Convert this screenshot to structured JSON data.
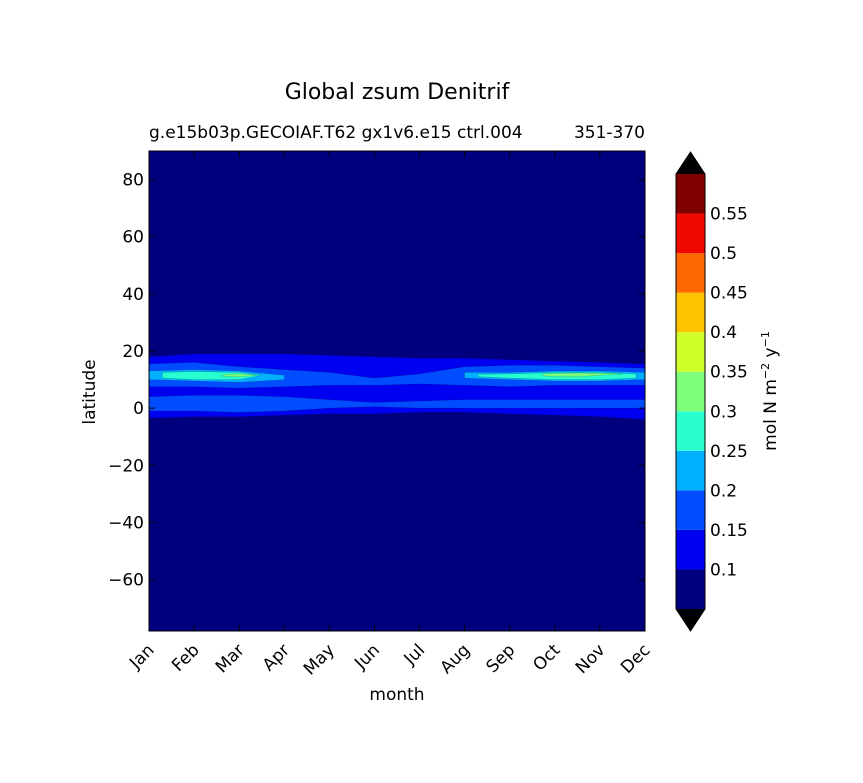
{
  "chart_data": {
    "type": "heatmap",
    "title": "Global zsum Denitrif",
    "subtitle_left": "g.e15b03p.GECOIAF.T62 gx1v6.e15 ctrl.004",
    "subtitle_right": "351-370",
    "xlabel": "month",
    "ylabel": "latitude",
    "x_categories": [
      "Jan",
      "Feb",
      "Mar",
      "Apr",
      "May",
      "Jun",
      "Jul",
      "Aug",
      "Sep",
      "Oct",
      "Nov",
      "Dec"
    ],
    "ylim": [
      -78,
      90
    ],
    "y_ticks": [
      -60,
      -40,
      -20,
      0,
      20,
      40,
      60,
      80
    ],
    "y_tick_labels": [
      "−60",
      "−40",
      "−20",
      "0",
      "20",
      "40",
      "60",
      "80"
    ],
    "colorbar": {
      "label_main": "mol N m",
      "label_exp1": "−2",
      "label_mid": " y",
      "label_exp2": "−1",
      "levels": [
        0.05,
        0.1,
        0.15,
        0.2,
        0.25,
        0.3,
        0.35,
        0.4,
        0.45,
        0.5,
        0.55,
        0.6
      ],
      "tick_values": [
        0.1,
        0.15,
        0.2,
        0.25,
        0.3,
        0.35,
        0.4,
        0.45,
        0.5,
        0.55
      ],
      "tick_labels": [
        "0.1",
        "0.15",
        "0.2",
        "0.25",
        "0.3",
        "0.35",
        "0.4",
        "0.45",
        "0.5",
        "0.55"
      ],
      "colors": [
        "#00007f",
        "#0000f1",
        "#004cff",
        "#00b0ff",
        "#29ffce",
        "#7dff7a",
        "#ceff29",
        "#ffc400",
        "#ff6800",
        "#f10800",
        "#7f0000"
      ],
      "extend_color": "#000000"
    },
    "background_color": "#00007f",
    "bands": [
      {
        "level": 1,
        "points": [
          [
            0,
            18
          ],
          [
            1,
            19
          ],
          [
            2,
            19
          ],
          [
            3,
            19
          ],
          [
            4,
            18.5
          ],
          [
            5,
            18
          ],
          [
            6,
            17.5
          ],
          [
            7,
            17.5
          ],
          [
            8,
            17
          ],
          [
            9,
            16.5
          ],
          [
            10,
            16
          ],
          [
            11,
            15.5
          ],
          [
            11,
            -4
          ],
          [
            10,
            -3
          ],
          [
            9,
            -2.5
          ],
          [
            8,
            -2
          ],
          [
            7,
            -1.5
          ],
          [
            6,
            -1.5
          ],
          [
            5,
            -2
          ],
          [
            4,
            -2
          ],
          [
            3,
            -2.5
          ],
          [
            2,
            -3
          ],
          [
            1,
            -3
          ],
          [
            0,
            -3.5
          ]
        ]
      },
      {
        "level": 2,
        "points": [
          [
            0,
            15.5
          ],
          [
            1,
            16
          ],
          [
            2,
            14.5
          ],
          [
            3,
            13.5
          ],
          [
            4,
            12.5
          ],
          [
            5,
            10.5
          ],
          [
            6,
            12
          ],
          [
            7,
            14.5
          ],
          [
            8,
            15
          ],
          [
            9,
            15
          ],
          [
            10,
            14.5
          ],
          [
            11,
            14
          ],
          [
            11,
            8
          ],
          [
            10,
            8
          ],
          [
            9,
            8
          ],
          [
            8,
            7.5
          ],
          [
            7,
            8
          ],
          [
            6,
            8.5
          ],
          [
            5,
            8
          ],
          [
            4,
            8
          ],
          [
            3,
            7.5
          ],
          [
            2,
            7
          ],
          [
            1,
            7.5
          ],
          [
            0,
            7.5
          ]
        ]
      },
      {
        "level": 2,
        "points": [
          [
            0,
            4
          ],
          [
            1,
            4.5
          ],
          [
            2,
            4.5
          ],
          [
            3,
            4
          ],
          [
            4,
            3
          ],
          [
            5,
            2
          ],
          [
            6,
            2.5
          ],
          [
            7,
            3
          ],
          [
            8,
            3
          ],
          [
            9,
            3
          ],
          [
            10,
            3
          ],
          [
            11,
            3
          ],
          [
            11,
            0
          ],
          [
            10,
            0
          ],
          [
            9,
            0
          ],
          [
            8,
            0
          ],
          [
            7,
            0
          ],
          [
            6,
            0
          ],
          [
            5,
            0.5
          ],
          [
            4,
            0
          ],
          [
            3,
            -1
          ],
          [
            2,
            -1.5
          ],
          [
            1,
            -1
          ],
          [
            0,
            -1
          ]
        ]
      },
      {
        "level": 3,
        "points": [
          [
            0,
            13
          ],
          [
            1,
            13.5
          ],
          [
            2,
            13
          ],
          [
            3,
            11.5
          ],
          [
            3,
            10
          ],
          [
            2,
            9
          ],
          [
            1,
            9.5
          ],
          [
            0,
            10
          ]
        ]
      },
      {
        "level": 3,
        "points": [
          [
            7,
            12.5
          ],
          [
            8,
            12.5
          ],
          [
            9,
            13
          ],
          [
            10,
            13
          ],
          [
            11,
            12.5
          ],
          [
            11,
            10
          ],
          [
            10,
            9.5
          ],
          [
            9,
            9.5
          ],
          [
            8,
            10
          ],
          [
            7,
            10.5
          ]
        ]
      },
      {
        "level": 4,
        "points": [
          [
            0.3,
            12.5
          ],
          [
            1,
            12.8
          ],
          [
            2,
            12.5
          ],
          [
            2.5,
            11.5
          ],
          [
            2,
            10
          ],
          [
            1,
            10
          ],
          [
            0.3,
            10.5
          ]
        ]
      },
      {
        "level": 4,
        "points": [
          [
            7.3,
            11.8
          ],
          [
            8,
            12
          ],
          [
            9,
            12.5
          ],
          [
            10,
            12.5
          ],
          [
            10.8,
            12
          ],
          [
            10.8,
            10.5
          ],
          [
            10,
            10
          ],
          [
            9,
            10
          ],
          [
            8,
            10.5
          ],
          [
            7.3,
            11
          ]
        ]
      },
      {
        "level": 5,
        "points": [
          [
            1.7,
            11.8
          ],
          [
            2,
            12
          ],
          [
            2.4,
            11.5
          ],
          [
            2,
            11
          ],
          [
            1.6,
            11.2
          ]
        ]
      },
      {
        "level": 5,
        "points": [
          [
            8.7,
            12
          ],
          [
            9.5,
            12.3
          ],
          [
            10.5,
            12
          ],
          [
            9.5,
            11
          ],
          [
            8.8,
            11.2
          ]
        ]
      }
    ]
  }
}
